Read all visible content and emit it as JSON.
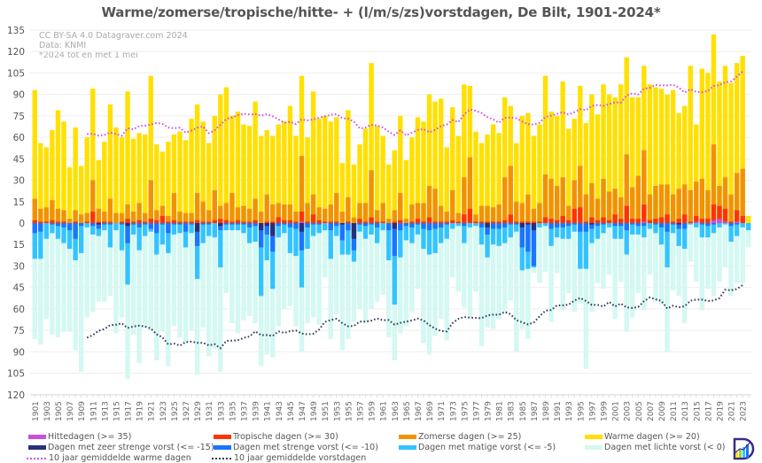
{
  "chart_data": {
    "type": "bar",
    "title": "Warme/zomerse/tropische/hitte- + (l/m/s/zs)vorstdagen, De Bilt, 1901-2024*",
    "annotations": [
      "CC BY-SA 4.0 Datagraver.com 2024",
      "Data: KNMI",
      "*2024 tot en met 1 mei"
    ],
    "xlabel": "",
    "ylabel": "",
    "ylim": [
      -120,
      135
    ],
    "y_ticks_above": [
      135,
      120,
      105,
      90,
      75,
      60,
      45,
      30,
      15,
      0
    ],
    "y_ticks_below": [
      15,
      30,
      45,
      60,
      75,
      90,
      105,
      120
    ],
    "grid": true,
    "legend_placement": "bottom",
    "years_start": 1901,
    "years_end": 2024,
    "x_tick_step": 2,
    "moving_average_window": 10,
    "series": [
      {
        "name": "Warme dagen (>= 20)",
        "direction": "up",
        "color": "#ffe000",
        "values": [
          93,
          56,
          53,
          65,
          79,
          71,
          39,
          67,
          40,
          60,
          94,
          44,
          57,
          83,
          67,
          60,
          92,
          59,
          63,
          62,
          103,
          55,
          50,
          57,
          62,
          64,
          58,
          73,
          83,
          71,
          56,
          75,
          90,
          95,
          75,
          78,
          69,
          68,
          85,
          61,
          65,
          61,
          69,
          71,
          82,
          61,
          103,
          60,
          92,
          73,
          75,
          71,
          74,
          42,
          79,
          41,
          55,
          66,
          112,
          68,
          61,
          41,
          51,
          75,
          44,
          60,
          74,
          71,
          90,
          85,
          87,
          53,
          81,
          61,
          97,
          96,
          64,
          56,
          62,
          69,
          63,
          88,
          82,
          56,
          75,
          77,
          61,
          69,
          103,
          78,
          75,
          99,
          66,
          73,
          96,
          70,
          90,
          76,
          97,
          90,
          88,
          97,
          116,
          88,
          88,
          110,
          97,
          95,
          94,
          90,
          93,
          77,
          82,
          110,
          69,
          108,
          105,
          132,
          99,
          110,
          98,
          112,
          117,
          5
        ]
      },
      {
        "name": "Zomerse dagen (>= 25)",
        "direction": "up",
        "color": "#f29200",
        "values": [
          17,
          10,
          11,
          16,
          10,
          9,
          3,
          9,
          6,
          7,
          30,
          10,
          8,
          17,
          7,
          7,
          13,
          8,
          14,
          7,
          30,
          9,
          12,
          5,
          21,
          8,
          7,
          7,
          21,
          15,
          9,
          23,
          12,
          14,
          21,
          11,
          12,
          10,
          17,
          8,
          20,
          13,
          14,
          13,
          13,
          8,
          47,
          14,
          20,
          11,
          10,
          13,
          21,
          8,
          18,
          4,
          14,
          14,
          37,
          9,
          14,
          3,
          9,
          21,
          3,
          13,
          14,
          14,
          26,
          24,
          12,
          8,
          23,
          7,
          32,
          46,
          6,
          12,
          12,
          11,
          13,
          32,
          40,
          15,
          14,
          20,
          10,
          14,
          34,
          31,
          26,
          32,
          12,
          30,
          40,
          20,
          28,
          17,
          31,
          22,
          24,
          18,
          48,
          25,
          33,
          51,
          20,
          26,
          27,
          27,
          20,
          24,
          27,
          23,
          29,
          31,
          23,
          55,
          26,
          32,
          20,
          35,
          38,
          0
        ]
      },
      {
        "name": "Tropische dagen (>= 30)",
        "direction": "up",
        "color": "#ff3300",
        "values": [
          2,
          1,
          1,
          2,
          1,
          1,
          0,
          1,
          0,
          1,
          8,
          1,
          1,
          1,
          0,
          1,
          3,
          1,
          2,
          1,
          3,
          2,
          5,
          1,
          2,
          1,
          1,
          1,
          2,
          1,
          1,
          2,
          3,
          2,
          1,
          2,
          1,
          1,
          2,
          0,
          1,
          1,
          4,
          2,
          2,
          1,
          8,
          1,
          6,
          2,
          1,
          1,
          1,
          0,
          1,
          0,
          3,
          1,
          4,
          1,
          1,
          0,
          1,
          2,
          0,
          1,
          3,
          1,
          4,
          1,
          1,
          1,
          2,
          1,
          6,
          10,
          1,
          1,
          1,
          1,
          1,
          2,
          6,
          1,
          1,
          1,
          1,
          1,
          4,
          3,
          2,
          5,
          2,
          10,
          11,
          1,
          4,
          2,
          4,
          2,
          6,
          3,
          12,
          3,
          3,
          13,
          2,
          3,
          4,
          6,
          1,
          3,
          6,
          1,
          5,
          3,
          3,
          13,
          12,
          10,
          1,
          9,
          5,
          0
        ]
      },
      {
        "name": "Hittedagen (>= 35)",
        "direction": "up",
        "color": "#cc4fd6",
        "values": [
          0,
          0,
          0,
          0,
          0,
          0,
          0,
          0,
          0,
          0,
          0,
          0,
          0,
          0,
          0,
          0,
          0,
          0,
          0,
          0,
          0,
          0,
          0,
          0,
          0,
          0,
          0,
          0,
          0,
          0,
          0,
          0,
          0,
          0,
          0,
          0,
          0,
          0,
          0,
          0,
          0,
          0,
          0,
          0,
          0,
          0,
          1,
          0,
          0,
          0,
          0,
          0,
          0,
          0,
          0,
          0,
          0,
          0,
          0,
          0,
          0,
          0,
          0,
          0,
          0,
          0,
          0,
          0,
          0,
          0,
          0,
          0,
          0,
          0,
          0,
          0,
          0,
          0,
          0,
          0,
          0,
          0,
          0,
          0,
          0,
          0,
          0,
          0,
          0,
          0,
          0,
          0,
          0,
          0,
          0,
          0,
          0,
          0,
          0,
          0,
          0,
          0,
          0,
          0,
          0,
          1,
          0,
          0,
          0,
          0,
          0,
          0,
          0,
          0,
          1,
          0,
          0,
          2,
          3,
          1,
          0,
          1,
          0,
          0
        ]
      },
      {
        "name": "Dagen met lichte vorst (< 0)",
        "direction": "down",
        "color": "#d4f8f2",
        "values": [
          81,
          85,
          67,
          78,
          80,
          76,
          76,
          89,
          104,
          66,
          62,
          55,
          55,
          51,
          77,
          66,
          109,
          78,
          98,
          73,
          75,
          96,
          76,
          100,
          72,
          80,
          84,
          75,
          106,
          73,
          93,
          88,
          104,
          49,
          70,
          77,
          68,
          65,
          70,
          100,
          92,
          94,
          72,
          60,
          58,
          72,
          90,
          70,
          66,
          71,
          38,
          81,
          64,
          89,
          81,
          69,
          60,
          70,
          60,
          55,
          50,
          80,
          96,
          77,
          72,
          62,
          46,
          84,
          92,
          79,
          67,
          82,
          38,
          48,
          59,
          66,
          48,
          86,
          73,
          74,
          67,
          62,
          54,
          90,
          74,
          81,
          35,
          42,
          34,
          69,
          35,
          61,
          49,
          62,
          56,
          102,
          62,
          42,
          46,
          36,
          67,
          41,
          76,
          66,
          49,
          61,
          36,
          55,
          57,
          90,
          47,
          51,
          70,
          27,
          41,
          61,
          46,
          51,
          41,
          31,
          51,
          42,
          42,
          17
        ]
      },
      {
        "name": "Dagen met matige vorst (<= -5)",
        "direction": "down",
        "color": "#33c4ff",
        "values": [
          25,
          25,
          11,
          7,
          11,
          14,
          18,
          26,
          21,
          3,
          8,
          9,
          5,
          17,
          5,
          19,
          43,
          8,
          19,
          9,
          6,
          22,
          15,
          21,
          8,
          7,
          17,
          7,
          39,
          14,
          9,
          10,
          31,
          5,
          5,
          5,
          7,
          14,
          13,
          51,
          26,
          46,
          10,
          7,
          21,
          23,
          45,
          18,
          9,
          7,
          5,
          25,
          9,
          22,
          22,
          27,
          6,
          11,
          8,
          14,
          5,
          26,
          57,
          24,
          12,
          14,
          8,
          18,
          22,
          21,
          14,
          11,
          4,
          2,
          14,
          3,
          2,
          15,
          24,
          15,
          16,
          14,
          10,
          6,
          33,
          32,
          31,
          3,
          2,
          16,
          10,
          11,
          11,
          6,
          32,
          32,
          14,
          11,
          7,
          3,
          11,
          11,
          22,
          8,
          8,
          10,
          4,
          7,
          15,
          31,
          7,
          16,
          18,
          1,
          3,
          10,
          10,
          7,
          3,
          1,
          13,
          9,
          3,
          5
        ]
      },
      {
        "name": "Dagen met strenge vorst (<= -10)",
        "direction": "down",
        "color": "#1a75ff",
        "values": [
          7,
          6,
          0,
          1,
          2,
          3,
          5,
          11,
          2,
          0,
          2,
          4,
          1,
          1,
          0,
          1,
          14,
          1,
          3,
          1,
          4,
          7,
          1,
          7,
          1,
          1,
          6,
          1,
          16,
          1,
          1,
          0,
          5,
          1,
          1,
          1,
          1,
          3,
          2,
          17,
          8,
          20,
          2,
          1,
          3,
          4,
          19,
          3,
          1,
          1,
          0,
          5,
          2,
          12,
          5,
          19,
          1,
          2,
          1,
          3,
          0,
          5,
          23,
          5,
          2,
          3,
          1,
          4,
          5,
          4,
          3,
          1,
          0,
          0,
          2,
          0,
          0,
          3,
          8,
          4,
          4,
          3,
          1,
          1,
          17,
          20,
          30,
          0,
          0,
          4,
          3,
          3,
          2,
          1,
          6,
          6,
          4,
          2,
          1,
          0,
          2,
          2,
          5,
          1,
          2,
          2,
          0,
          1,
          3,
          6,
          1,
          4,
          4,
          0,
          0,
          1,
          2,
          1,
          0,
          0,
          2,
          1,
          0,
          0
        ]
      },
      {
        "name": "Dagen met zeer strenge vorst (<= -15)",
        "direction": "down",
        "color": "#28307a",
        "values": [
          0,
          0,
          0,
          0,
          0,
          0,
          0,
          0,
          0,
          0,
          0,
          1,
          0,
          0,
          0,
          0,
          2,
          0,
          0,
          0,
          0,
          0,
          0,
          0,
          0,
          0,
          0,
          0,
          6,
          0,
          0,
          0,
          2,
          0,
          0,
          0,
          0,
          0,
          0,
          5,
          2,
          9,
          0,
          0,
          0,
          0,
          6,
          0,
          0,
          0,
          0,
          0,
          0,
          1,
          0,
          11,
          0,
          0,
          0,
          0,
          0,
          0,
          4,
          0,
          0,
          0,
          0,
          0,
          0,
          0,
          0,
          0,
          0,
          0,
          0,
          0,
          0,
          0,
          3,
          0,
          0,
          0,
          0,
          0,
          3,
          1,
          5,
          0,
          0,
          0,
          0,
          0,
          0,
          0,
          0,
          0,
          1,
          0,
          0,
          0,
          0,
          0,
          0,
          0,
          0,
          0,
          0,
          0,
          0,
          0,
          0,
          1,
          0,
          0,
          0,
          0,
          0,
          0,
          0,
          0,
          0,
          0,
          0,
          0
        ]
      }
    ],
    "lines": [
      {
        "name": "10 jaar gemiddelde warme dagen",
        "based_on": "Warme dagen (>= 20)",
        "color": "#d64fe0"
      },
      {
        "name": "10 jaar gemiddelde vorstdagen",
        "based_on": "Dagen met lichte vorst (< 0)",
        "color": "#2c3a5a"
      }
    ]
  },
  "legend": {
    "hitte": "Hittedagen (>= 35)",
    "tropisch": "Tropische dagen (>= 30)",
    "zomers": "Zomerse dagen (>= 25)",
    "warm": "Warme dagen (>= 20)",
    "zeer_streng": "Dagen met zeer strenge vorst (<= -15)",
    "streng": "Dagen met strenge vorst (<= -10)",
    "matig": "Dagen met matige vorst (<= -5)",
    "licht": "Dagen met lichte vorst (< 0)",
    "ma_warm": "10 jaar gemiddelde warme dagen",
    "ma_vorst": "10 jaar gemiddelde vorstdagen"
  },
  "logo": {
    "name": "datagraver-logo-icon"
  }
}
